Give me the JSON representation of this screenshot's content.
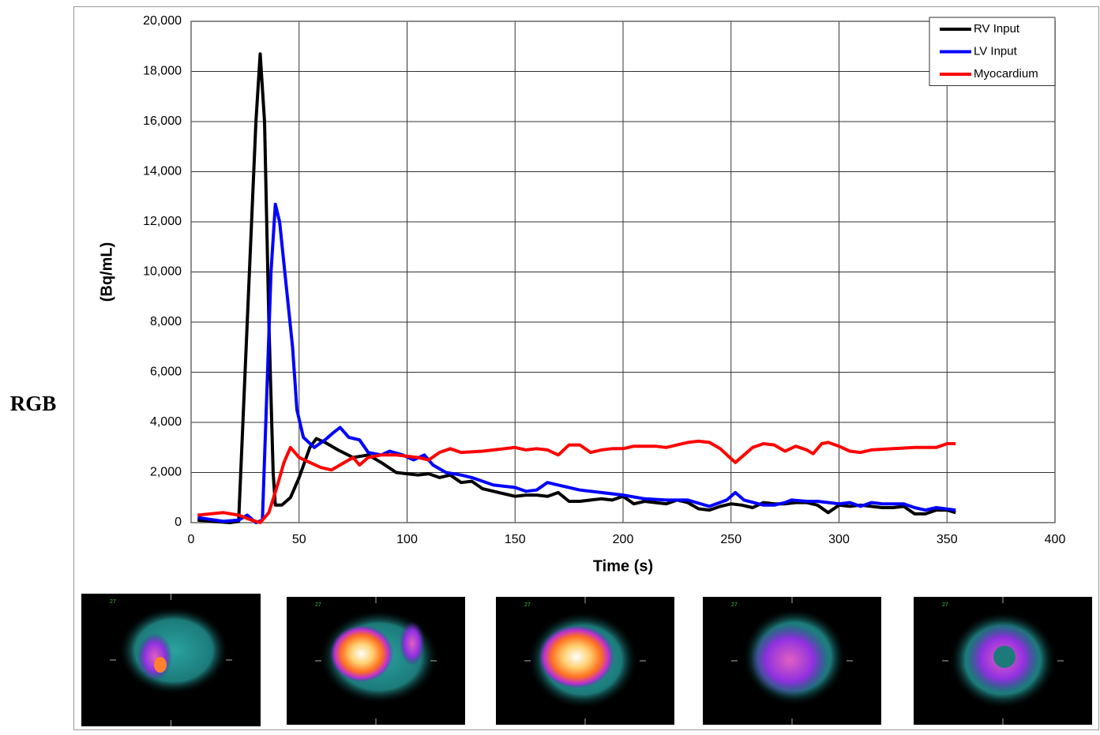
{
  "side_label": "RGB",
  "panel_labels": [
    "27",
    "27",
    "27",
    "27",
    "27"
  ],
  "chart_data": {
    "type": "line",
    "x_label": "Time (s)",
    "y_label": "(Bq/mL)",
    "xlim": [
      0,
      400
    ],
    "xticks": [
      0,
      50,
      100,
      150,
      200,
      250,
      300,
      350,
      400
    ],
    "ylim": [
      0,
      20000
    ],
    "yticks": [
      0,
      {
        "value": 2000,
        "label": "2,000"
      },
      {
        "value": 4000,
        "label": "4,000"
      },
      {
        "value": 6000,
        "label": "6,000"
      },
      {
        "value": 8000,
        "label": "8,000"
      },
      {
        "value": 10000,
        "label": "10,000"
      },
      {
        "value": 12000,
        "label": "12,000"
      },
      {
        "value": 14000,
        "label": "14,000"
      },
      {
        "value": 16000,
        "label": "16,000"
      },
      {
        "value": 18000,
        "label": "18,000"
      },
      {
        "value": 20000,
        "label": "20,000"
      }
    ],
    "grid": true,
    "legend": "top-right",
    "series": [
      {
        "name": "RV Input",
        "color": "#000000",
        "x": [
          3,
          10,
          18,
          22,
          26,
          30,
          32,
          34,
          36,
          38,
          39,
          42,
          46,
          50,
          55,
          58,
          62,
          68,
          75,
          82,
          88,
          95,
          100,
          105,
          110,
          115,
          120,
          125,
          130,
          135,
          140,
          145,
          150,
          155,
          160,
          165,
          170,
          175,
          180,
          185,
          190,
          195,
          200,
          205,
          210,
          215,
          220,
          225,
          230,
          235,
          240,
          245,
          250,
          255,
          260,
          265,
          270,
          275,
          280,
          285,
          290,
          295,
          300,
          305,
          310,
          315,
          320,
          325,
          330,
          335,
          340,
          345,
          350,
          354
        ],
        "values": [
          100,
          50,
          0,
          50,
          8000,
          16000,
          18700,
          16000,
          8000,
          2000,
          700,
          700,
          1000,
          1800,
          3000,
          3350,
          3200,
          2900,
          2600,
          2700,
          2400,
          2000,
          1950,
          1900,
          1950,
          1800,
          1900,
          1600,
          1650,
          1350,
          1250,
          1150,
          1050,
          1100,
          1100,
          1050,
          1200,
          850,
          850,
          900,
          950,
          900,
          1050,
          750,
          850,
          800,
          750,
          900,
          800,
          550,
          500,
          650,
          750,
          700,
          600,
          800,
          750,
          750,
          800,
          800,
          700,
          400,
          700,
          650,
          700,
          650,
          600,
          600,
          650,
          350,
          350,
          500,
          500,
          400
        ]
      },
      {
        "name": "LV Input",
        "color": "#0000ff",
        "x": [
          3,
          15,
          22,
          26,
          30,
          33,
          35,
          37,
          39,
          41,
          44,
          47,
          49,
          52,
          57,
          62,
          66,
          69,
          73,
          78,
          82,
          88,
          92,
          98,
          103,
          108,
          112,
          118,
          125,
          130,
          140,
          150,
          155,
          160,
          165,
          170,
          180,
          190,
          200,
          210,
          220,
          230,
          240,
          248,
          252,
          256,
          265,
          270,
          275,
          278,
          285,
          290,
          300,
          305,
          310,
          315,
          320,
          330,
          335,
          340,
          345,
          354
        ],
        "values": [
          200,
          50,
          100,
          300,
          0,
          100,
          5000,
          10000,
          12700,
          12000,
          9500,
          7000,
          4500,
          3400,
          3000,
          3300,
          3600,
          3800,
          3400,
          3300,
          2800,
          2700,
          2850,
          2700,
          2500,
          2700,
          2300,
          2000,
          1900,
          1800,
          1500,
          1400,
          1250,
          1300,
          1600,
          1500,
          1300,
          1200,
          1100,
          950,
          900,
          900,
          650,
          900,
          1200,
          900,
          700,
          700,
          800,
          900,
          850,
          850,
          750,
          800,
          650,
          800,
          750,
          750,
          600,
          500,
          600,
          500
        ]
      },
      {
        "name": "Myocardium",
        "color": "#ff0000",
        "x": [
          3,
          15,
          22,
          28,
          32,
          36,
          40,
          43,
          46,
          50,
          55,
          60,
          65,
          70,
          75,
          78,
          82,
          88,
          95,
          100,
          105,
          110,
          115,
          120,
          125,
          135,
          145,
          150,
          155,
          160,
          165,
          170,
          175,
          180,
          185,
          190,
          195,
          200,
          205,
          210,
          215,
          220,
          225,
          230,
          235,
          240,
          245,
          250,
          252,
          256,
          260,
          265,
          270,
          275,
          280,
          285,
          288,
          292,
          295,
          300,
          305,
          310,
          315,
          325,
          335,
          345,
          350,
          354
        ],
        "values": [
          300,
          400,
          300,
          100,
          0,
          400,
          1500,
          2400,
          3000,
          2600,
          2400,
          2200,
          2100,
          2350,
          2600,
          2300,
          2600,
          2700,
          2700,
          2650,
          2600,
          2500,
          2800,
          2950,
          2800,
          2850,
          2950,
          3000,
          2900,
          2950,
          2900,
          2700,
          3100,
          3100,
          2800,
          2900,
          2950,
          2950,
          3050,
          3050,
          3050,
          3000,
          3100,
          3200,
          3250,
          3200,
          2950,
          2550,
          2400,
          2700,
          3000,
          3150,
          3100,
          2850,
          3050,
          2900,
          2750,
          3150,
          3200,
          3050,
          2850,
          2800,
          2900,
          2950,
          3000,
          3000,
          3150,
          3150
        ]
      }
    ]
  }
}
